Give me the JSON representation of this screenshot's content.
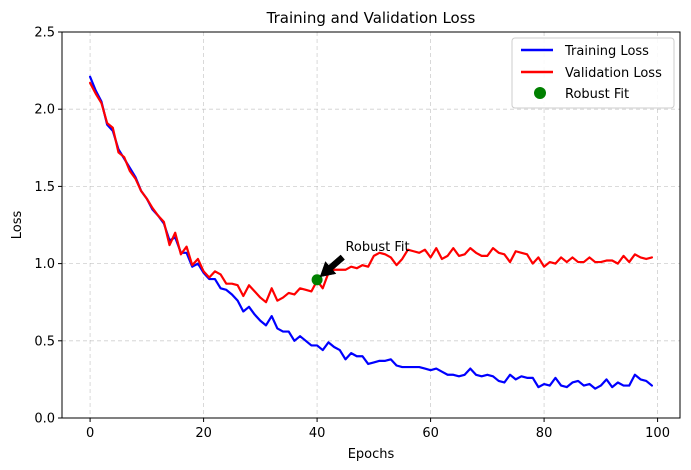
{
  "chart_data": {
    "type": "line",
    "title": "Training and Validation Loss",
    "xlabel": "Epochs",
    "ylabel": "Loss",
    "xlim": [
      -4.95,
      103.95
    ],
    "ylim": [
      0,
      2.5
    ],
    "xticks": [
      0,
      20,
      40,
      60,
      80,
      100
    ],
    "yticks": [
      0.0,
      0.5,
      1.0,
      1.5,
      2.0,
      2.5
    ],
    "xtick_labels": [
      "0",
      "20",
      "40",
      "60",
      "80",
      "100"
    ],
    "ytick_labels": [
      "0.0",
      "0.5",
      "1.0",
      "1.5",
      "2.0",
      "2.5"
    ],
    "grid": true,
    "legend_position": "top-right",
    "series": [
      {
        "name": "Training Loss",
        "color": "#0000ff",
        "x": [
          0,
          1,
          2,
          3,
          4,
          5,
          6,
          7,
          8,
          9,
          10,
          11,
          12,
          13,
          14,
          15,
          16,
          17,
          18,
          19,
          20,
          21,
          22,
          23,
          24,
          25,
          26,
          27,
          28,
          29,
          30,
          31,
          32,
          33,
          34,
          35,
          36,
          37,
          38,
          39,
          40,
          41,
          42,
          43,
          44,
          45,
          46,
          47,
          48,
          49,
          50,
          51,
          52,
          53,
          54,
          55,
          56,
          57,
          58,
          59,
          60,
          61,
          62,
          63,
          64,
          65,
          66,
          67,
          68,
          69,
          70,
          71,
          72,
          73,
          74,
          75,
          76,
          77,
          78,
          79,
          80,
          81,
          82,
          83,
          84,
          85,
          86,
          87,
          88,
          89,
          90,
          91,
          92,
          93,
          94,
          95,
          96,
          97,
          98,
          99
        ],
        "values": [
          2.21,
          2.12,
          2.05,
          1.9,
          1.86,
          1.74,
          1.68,
          1.62,
          1.56,
          1.47,
          1.42,
          1.35,
          1.31,
          1.26,
          1.15,
          1.17,
          1.07,
          1.07,
          0.98,
          1.0,
          0.94,
          0.9,
          0.9,
          0.84,
          0.83,
          0.8,
          0.76,
          0.69,
          0.72,
          0.67,
          0.63,
          0.6,
          0.66,
          0.58,
          0.56,
          0.56,
          0.5,
          0.53,
          0.5,
          0.47,
          0.47,
          0.44,
          0.49,
          0.46,
          0.44,
          0.38,
          0.42,
          0.4,
          0.4,
          0.35,
          0.36,
          0.37,
          0.37,
          0.38,
          0.34,
          0.33,
          0.33,
          0.33,
          0.33,
          0.32,
          0.31,
          0.32,
          0.3,
          0.28,
          0.28,
          0.27,
          0.28,
          0.32,
          0.28,
          0.27,
          0.28,
          0.27,
          0.24,
          0.23,
          0.28,
          0.25,
          0.27,
          0.26,
          0.26,
          0.2,
          0.22,
          0.21,
          0.26,
          0.21,
          0.2,
          0.23,
          0.24,
          0.21,
          0.22,
          0.19,
          0.21,
          0.25,
          0.2,
          0.23,
          0.21,
          0.21,
          0.28,
          0.25,
          0.24,
          0.21
        ]
      },
      {
        "name": "Validation Loss",
        "color": "#ff0000",
        "x": [
          0,
          1,
          2,
          3,
          4,
          5,
          6,
          7,
          8,
          9,
          10,
          11,
          12,
          13,
          14,
          15,
          16,
          17,
          18,
          19,
          20,
          21,
          22,
          23,
          24,
          25,
          26,
          27,
          28,
          29,
          30,
          31,
          32,
          33,
          34,
          35,
          36,
          37,
          38,
          39,
          40,
          41,
          42,
          43,
          44,
          45,
          46,
          47,
          48,
          49,
          50,
          51,
          52,
          53,
          54,
          55,
          56,
          57,
          58,
          59,
          60,
          61,
          62,
          63,
          64,
          65,
          66,
          67,
          68,
          69,
          70,
          71,
          72,
          73,
          74,
          75,
          76,
          77,
          78,
          79,
          80,
          81,
          82,
          83,
          84,
          85,
          86,
          87,
          88,
          89,
          90,
          91,
          92,
          93,
          94,
          95,
          96,
          97,
          98,
          99
        ],
        "values": [
          2.17,
          2.1,
          2.04,
          1.91,
          1.88,
          1.72,
          1.69,
          1.6,
          1.55,
          1.47,
          1.42,
          1.36,
          1.31,
          1.27,
          1.12,
          1.2,
          1.06,
          1.11,
          0.99,
          1.03,
          0.95,
          0.91,
          0.95,
          0.93,
          0.87,
          0.87,
          0.86,
          0.79,
          0.86,
          0.82,
          0.78,
          0.75,
          0.84,
          0.76,
          0.78,
          0.81,
          0.8,
          0.84,
          0.83,
          0.82,
          0.89,
          0.84,
          0.94,
          0.96,
          0.96,
          0.96,
          0.98,
          0.97,
          0.99,
          0.98,
          1.05,
          1.07,
          1.06,
          1.04,
          0.99,
          1.03,
          1.09,
          1.08,
          1.07,
          1.09,
          1.04,
          1.1,
          1.03,
          1.05,
          1.1,
          1.05,
          1.06,
          1.1,
          1.07,
          1.05,
          1.05,
          1.1,
          1.07,
          1.06,
          1.01,
          1.08,
          1.07,
          1.06,
          1.0,
          1.04,
          0.98,
          1.01,
          1.0,
          1.04,
          1.01,
          1.04,
          1.01,
          1.01,
          1.04,
          1.01,
          1.01,
          1.02,
          1.02,
          1.0,
          1.05,
          1.01,
          1.06,
          1.04,
          1.03,
          1.04
        ]
      }
    ],
    "marker": {
      "name": "Robust Fit",
      "x": 40,
      "y": 0.895,
      "color": "#008000"
    },
    "annotation": {
      "text": "Robust Fit",
      "point_x": 40,
      "point_y": 0.895,
      "text_x": 45,
      "text_y": 1.08
    }
  }
}
